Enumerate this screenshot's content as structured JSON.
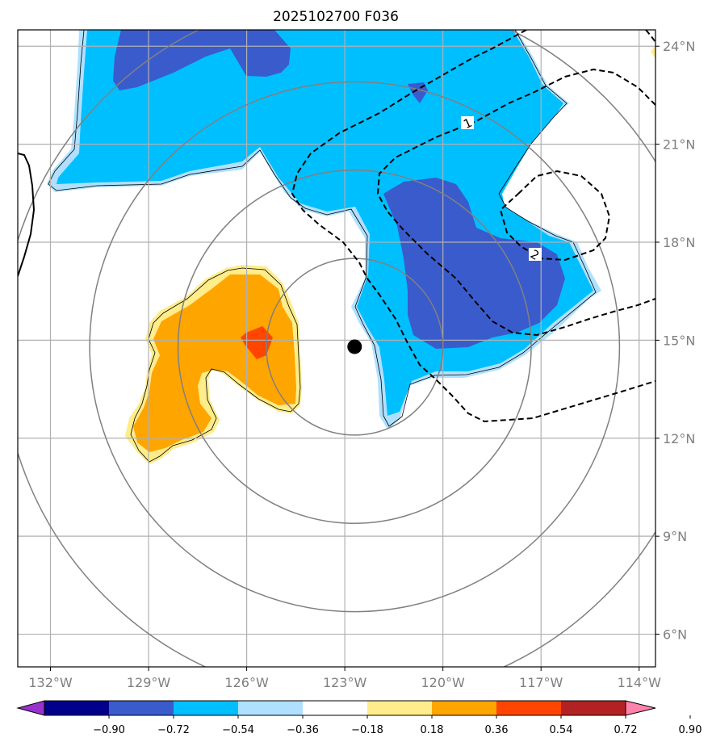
{
  "title": "2025102700 F036",
  "map": {
    "lon_range": [
      -133,
      -113.5
    ],
    "lat_range": [
      5,
      24.5
    ],
    "lon_ticks": [
      {
        "value": -132,
        "label": "132°W"
      },
      {
        "value": -129,
        "label": "129°W"
      },
      {
        "value": -126,
        "label": "126°W"
      },
      {
        "value": -123,
        "label": "123°W"
      },
      {
        "value": -120,
        "label": "120°W"
      },
      {
        "value": -117,
        "label": "117°W"
      },
      {
        "value": -114,
        "label": "114°W"
      }
    ],
    "lat_ticks": [
      {
        "value": 6,
        "label": "6°N"
      },
      {
        "value": 9,
        "label": "9°N"
      },
      {
        "value": 12,
        "label": "12°N"
      },
      {
        "value": 15,
        "label": "15°N"
      },
      {
        "value": 18,
        "label": "18°N"
      },
      {
        "value": 21,
        "label": "21°N"
      },
      {
        "value": 24,
        "label": "24°N"
      }
    ],
    "storm_center": {
      "lon": -122.7,
      "lat": 14.8
    },
    "range_rings_deg": [
      2.7,
      5.4,
      8.1,
      10.8
    ],
    "contour_labels": [
      "1",
      "2"
    ]
  },
  "colorbar": {
    "levels": [
      -0.9,
      -0.72,
      -0.54,
      -0.36,
      -0.18,
      0.18,
      0.36,
      0.54,
      0.72,
      0.9
    ],
    "tick_labels": [
      "−0.90",
      "−0.72",
      "−0.54",
      "−0.36",
      "−0.18",
      "0.18",
      "0.36",
      "0.54",
      "0.72",
      "0.90"
    ],
    "colors": [
      "#9932cc",
      "#00008b",
      "#3a5bcc",
      "#00bfff",
      "#b0e0ff",
      "#ffffff",
      "#ffec8b",
      "#ffa500",
      "#ff4500",
      "#b22222",
      "#ff82ab"
    ]
  },
  "colors": {
    "grid": "#b0b0b0",
    "ring": "#808080",
    "tick_text": "#7f7f7f",
    "strong_negative": "#3a5bcc",
    "negative": "#00bfff",
    "weak_negative": "#b0e0ff",
    "weak_positive": "#ffec8b",
    "positive": "#ffa500",
    "strong_positive": "#ff4500"
  }
}
